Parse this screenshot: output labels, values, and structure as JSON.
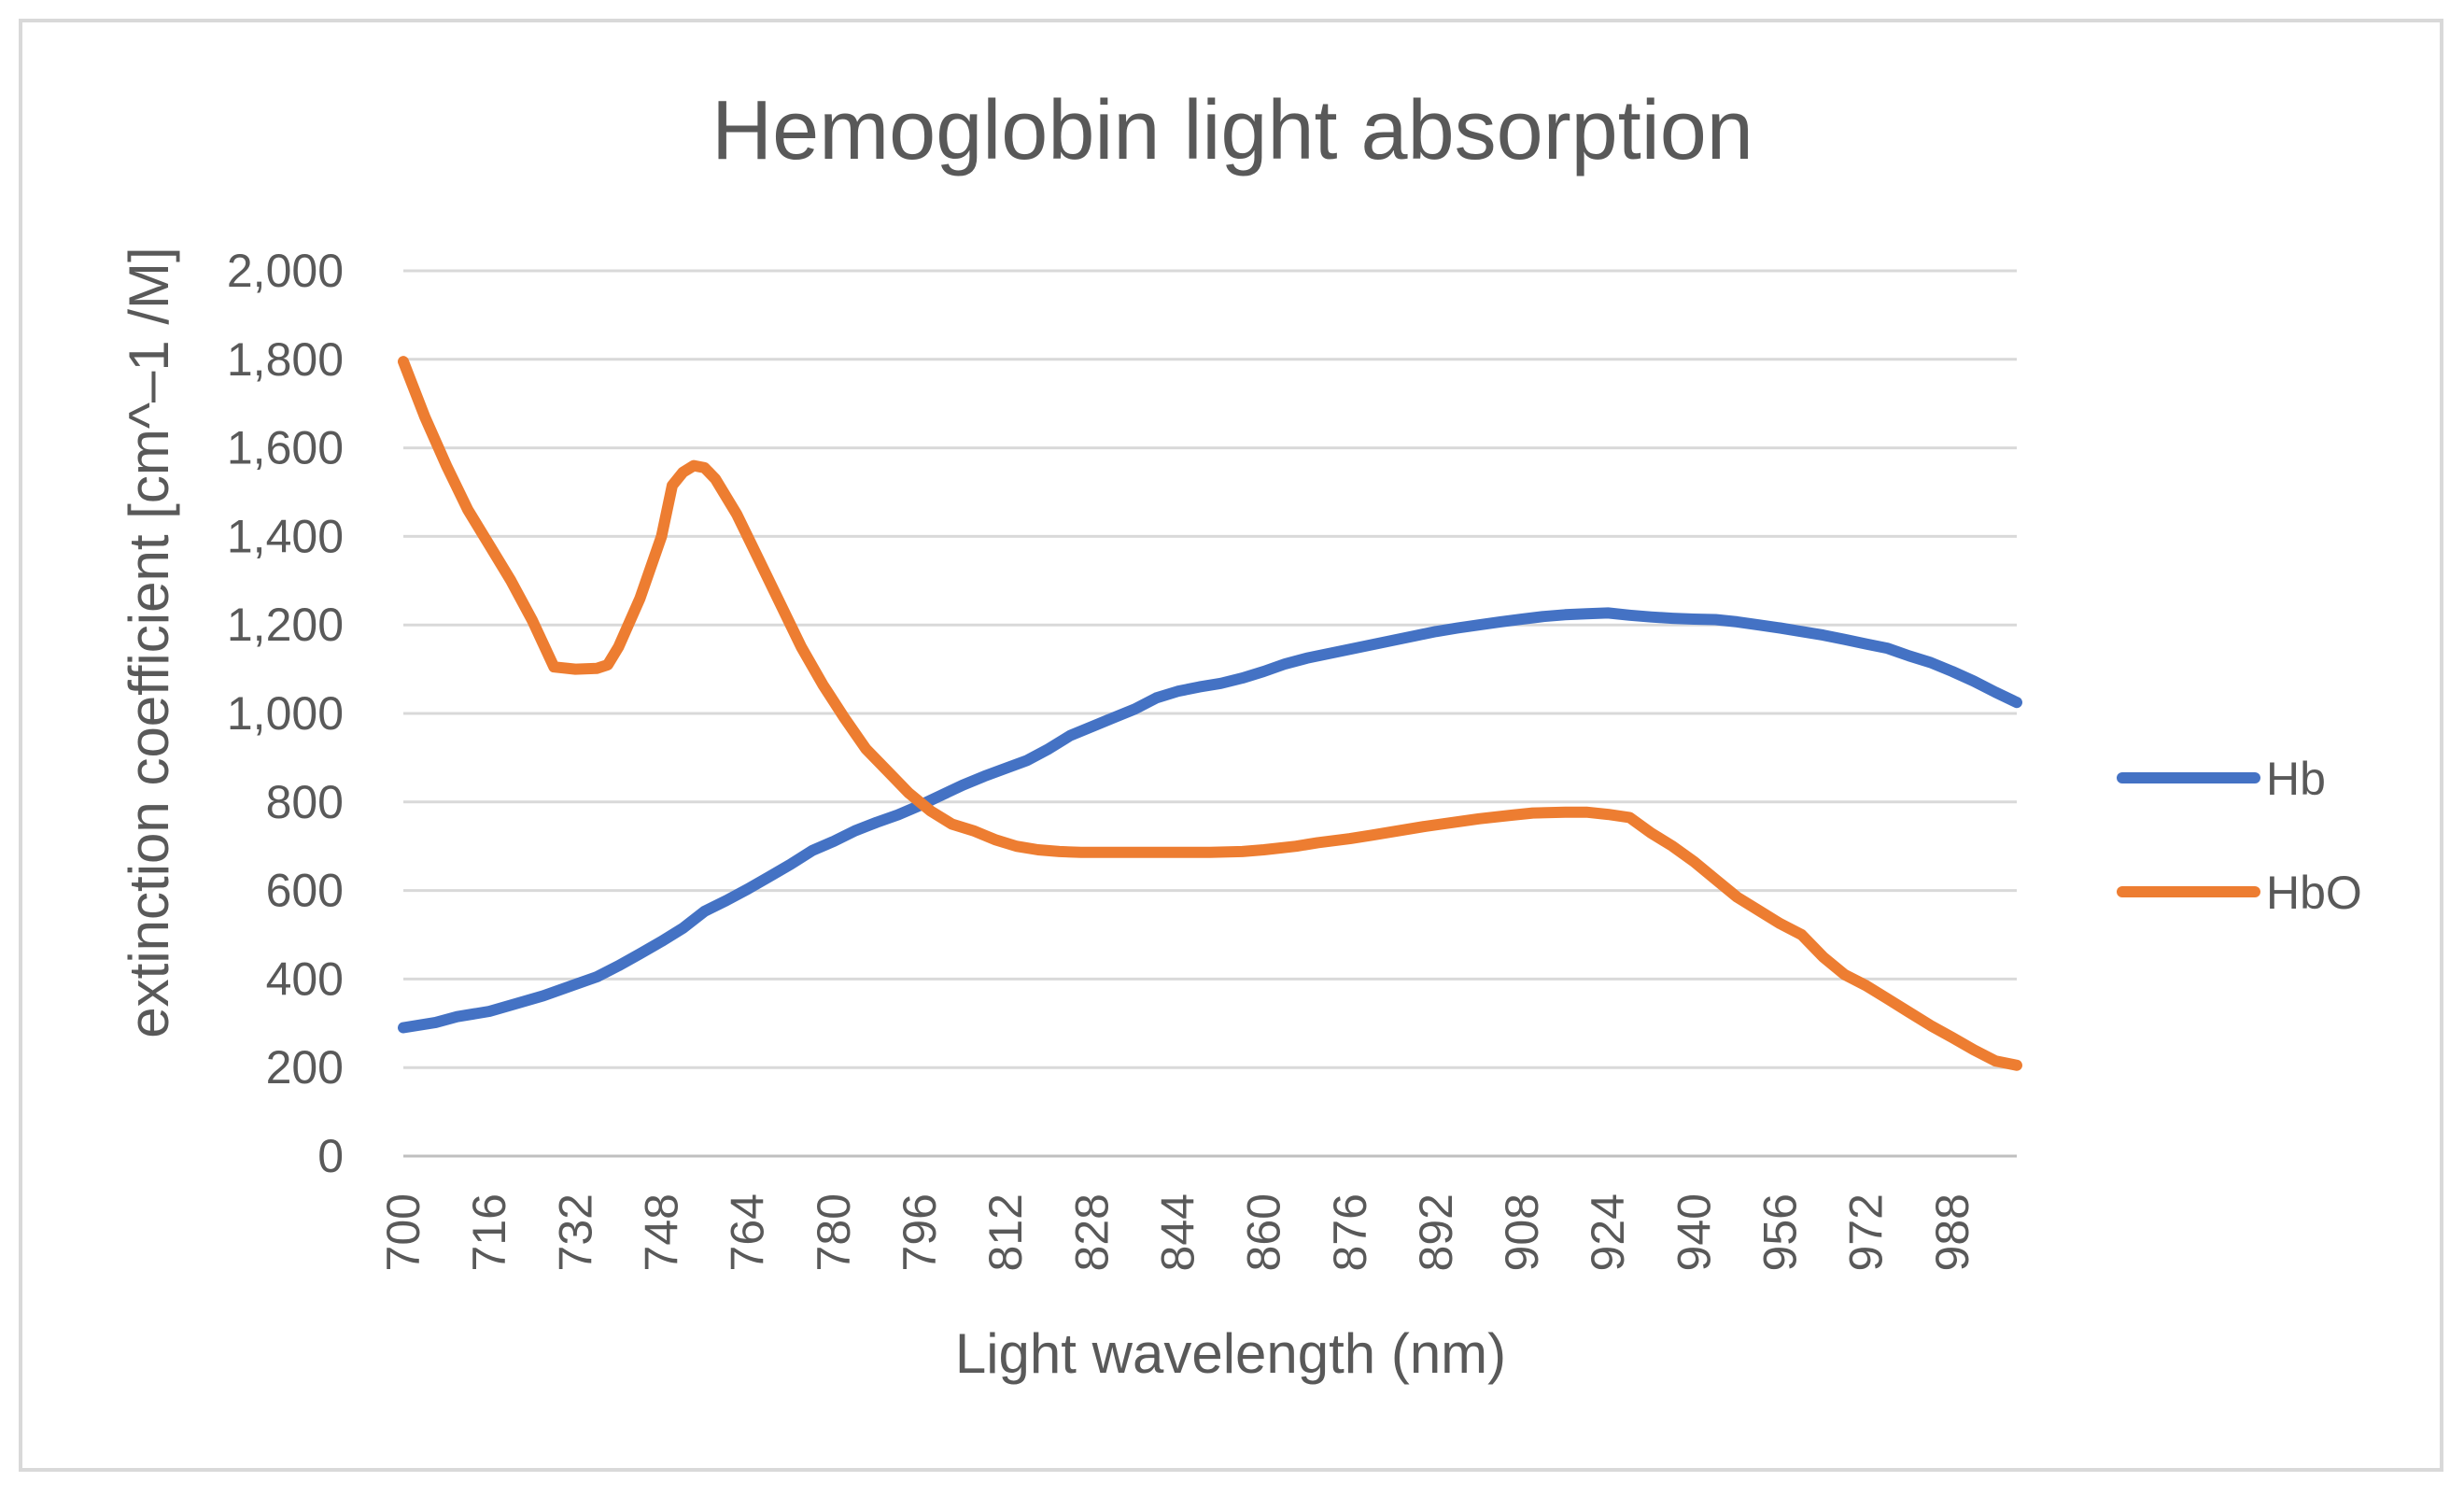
{
  "chart_data": {
    "type": "line",
    "title": "Hemoglobin light absorption",
    "xlabel": "Light wavelength (nm)",
    "ylabel": "extinction coefficient [cm^–1 /M]",
    "ylim": [
      0,
      2000
    ],
    "xlim": [
      700,
      1000
    ],
    "y_ticks": [
      0,
      200,
      400,
      600,
      800,
      1000,
      1200,
      1400,
      1600,
      1800,
      2000
    ],
    "y_tick_labels": [
      "0",
      "200",
      "400",
      "600",
      "800",
      "1,000",
      "1,200",
      "1,400",
      "1,600",
      "1,800",
      "2,000"
    ],
    "x_tick_labels": [
      "700",
      "716",
      "732",
      "748",
      "764",
      "780",
      "796",
      "812",
      "828",
      "844",
      "860",
      "876",
      "892",
      "908",
      "924",
      "940",
      "956",
      "972",
      "988"
    ],
    "grid": true,
    "legend_position": "right",
    "series": [
      {
        "name": "Hb",
        "color": "#4472c4",
        "x": [
          700,
          706,
          710,
          716,
          720,
          726,
          732,
          736,
          740,
          744,
          748,
          752,
          756,
          760,
          764,
          768,
          772,
          776,
          780,
          784,
          788,
          792,
          796,
          800,
          804,
          808,
          812,
          816,
          820,
          824,
          828,
          832,
          836,
          840,
          844,
          848,
          852,
          856,
          860,
          864,
          868,
          872,
          876,
          880,
          884,
          888,
          892,
          896,
          900,
          904,
          908,
          912,
          916,
          920,
          924,
          928,
          932,
          936,
          940,
          944,
          948,
          952,
          956,
          960,
          964,
          968,
          972,
          976,
          980,
          984,
          988,
          992,
          996,
          1000
        ],
        "values": [
          290,
          302,
          315,
          327,
          341,
          362,
          388,
          405,
          430,
          457,
          485,
          515,
          553,
          577,
          603,
          631,
          659,
          690,
          711,
          735,
          754,
          771,
          792,
          815,
          838,
          858,
          876,
          894,
          920,
          950,
          970,
          990,
          1010,
          1035,
          1050,
          1060,
          1068,
          1080,
          1095,
          1112,
          1125,
          1135,
          1145,
          1155,
          1165,
          1175,
          1185,
          1193,
          1200,
          1207,
          1213,
          1219,
          1223,
          1225,
          1227,
          1222,
          1218,
          1215,
          1213,
          1212,
          1207,
          1200,
          1193,
          1185,
          1177,
          1167,
          1157,
          1147,
          1130,
          1115,
          1095,
          1073,
          1048,
          1025
        ]
      },
      {
        "name": "HbO",
        "color": "#ed7d31",
        "x": [
          700,
          704,
          708,
          712,
          716,
          720,
          724,
          728,
          732,
          736,
          738,
          740,
          744,
          748,
          750,
          752,
          754,
          756,
          758,
          762,
          766,
          770,
          774,
          778,
          782,
          786,
          790,
          794,
          798,
          802,
          806,
          810,
          814,
          818,
          822,
          826,
          830,
          840,
          850,
          856,
          860,
          866,
          870,
          876,
          880,
          890,
          900,
          906,
          910,
          916,
          920,
          924,
          928,
          932,
          936,
          940,
          944,
          948,
          952,
          956,
          960,
          964,
          968,
          972,
          976,
          980,
          984,
          988,
          992,
          996,
          1000
        ],
        "values": [
          1795,
          1670,
          1560,
          1460,
          1380,
          1300,
          1210,
          1105,
          1100,
          1102,
          1110,
          1150,
          1260,
          1400,
          1515,
          1545,
          1560,
          1555,
          1530,
          1450,
          1350,
          1250,
          1150,
          1065,
          990,
          920,
          870,
          820,
          780,
          750,
          735,
          715,
          700,
          692,
          688,
          686,
          686,
          686,
          686,
          688,
          692,
          700,
          708,
          717,
          725,
          745,
          762,
          770,
          775,
          777,
          777,
          772,
          765,
          730,
          700,
          665,
          625,
          585,
          555,
          525,
          500,
          450,
          410,
          385,
          355,
          325,
          295,
          268,
          240,
          215,
          205
        ]
      }
    ]
  }
}
